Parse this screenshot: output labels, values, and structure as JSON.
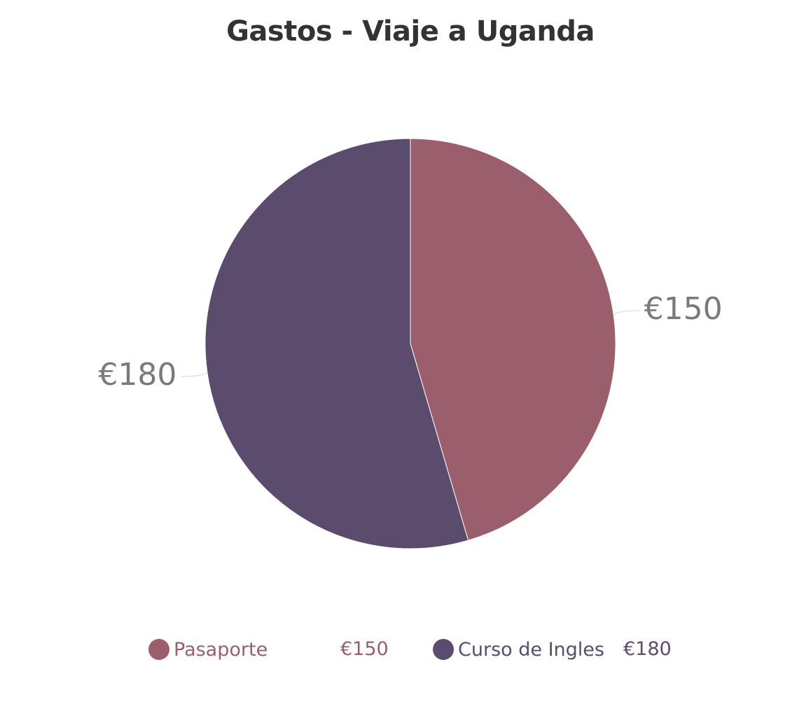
{
  "chart_data": {
    "type": "pie",
    "title": "Gastos - Viaje a Uganda",
    "categories": [
      "Pasaporte",
      "Curso de Ingles"
    ],
    "values": [
      150,
      180
    ],
    "value_labels": [
      "€150",
      "€180"
    ],
    "colors": [
      "#9a5e6c",
      "#5b4b6d"
    ],
    "data_label_color": "#7a7a7a",
    "start_angle_deg": 0,
    "direction": "clockwise",
    "legend": {
      "position": "bottom",
      "items": [
        {
          "label": "Pasaporte",
          "value": "€150"
        },
        {
          "label": "Curso de Ingles",
          "value": "€180"
        }
      ]
    }
  }
}
